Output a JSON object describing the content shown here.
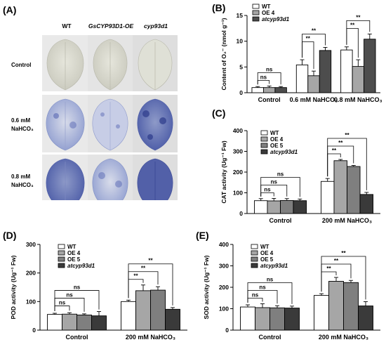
{
  "panelA": {
    "letter": "(A)",
    "columns": [
      "WT",
      "GsCYP93D1-OE",
      "cyp93d1"
    ],
    "rows": [
      {
        "line1": "Control",
        "line2": ""
      },
      {
        "line1": "0.6 mM",
        "line2": "NaHCO₃"
      },
      {
        "line1": "0.8 mM",
        "line2": "NaHCO₃"
      }
    ]
  },
  "chart_data": [
    {
      "id": "B",
      "letter": "(B)",
      "type": "bar",
      "ylabel": "Content of O₂⁻ (nmol g⁻¹)",
      "ylim": [
        0,
        15
      ],
      "yticks": [
        0,
        5,
        10,
        15
      ],
      "categories": [
        "Control",
        "0.6 mM  NaHCO₃",
        "0.8 mM  NaHCO₃"
      ],
      "series": [
        {
          "name": "WT",
          "color": "#ffffff",
          "values": [
            1.0,
            5.4,
            8.3
          ],
          "errors": [
            0.2,
            1.0,
            0.6
          ]
        },
        {
          "name": "OE 4",
          "color": "#a6a6a6",
          "values": [
            1.0,
            3.3,
            5.1
          ],
          "errors": [
            0.3,
            0.9,
            1.3
          ]
        },
        {
          "name": "atcyp93d1",
          "color": "#4d4d4d",
          "values": [
            1.0,
            8.2,
            10.4
          ],
          "errors": [
            0.2,
            0.6,
            1.0
          ]
        }
      ],
      "brackets": [
        {
          "label": "ns",
          "g": 0,
          "from": 0,
          "to": 1,
          "level": 0
        },
        {
          "label": "ns",
          "g": 0,
          "from": 0,
          "to": 2,
          "level": 1
        },
        {
          "label": "**",
          "g": 1,
          "from": 0,
          "to": 1,
          "level": 0
        },
        {
          "label": "**",
          "g": 1,
          "from": 0,
          "to": 2,
          "level": 1
        },
        {
          "label": "**",
          "g": 2,
          "from": 0,
          "to": 1,
          "level": 0
        },
        {
          "label": "**",
          "g": 2,
          "from": 0,
          "to": 2,
          "level": 1
        }
      ]
    },
    {
      "id": "C",
      "letter": "(C)",
      "type": "bar",
      "ylabel": "CAT activity (Ug⁻¹ Fw)",
      "ylim": [
        0,
        400
      ],
      "yticks": [
        0,
        100,
        200,
        300,
        400
      ],
      "categories": [
        "Control",
        "200 mM NaHCO₃"
      ],
      "series": [
        {
          "name": "WT",
          "color": "#ffffff",
          "values": [
            62,
            155
          ],
          "errors": [
            10,
            14
          ]
        },
        {
          "name": "OE 4",
          "color": "#a6a6a6",
          "values": [
            61,
            255
          ],
          "errors": [
            12,
            6
          ]
        },
        {
          "name": "OE 5",
          "color": "#7f7f7f",
          "values": [
            63,
            227
          ],
          "errors": [
            9,
            5
          ]
        },
        {
          "name": "atcyp93d1",
          "color": "#3a3a3a",
          "values": [
            62,
            92
          ],
          "errors": [
            8,
            10
          ]
        }
      ],
      "brackets": [
        {
          "label": "ns",
          "g": 0,
          "from": 0,
          "to": 1,
          "level": 0
        },
        {
          "label": "ns",
          "g": 0,
          "from": 0,
          "to": 2,
          "level": 1
        },
        {
          "label": "ns",
          "g": 0,
          "from": 0,
          "to": 3,
          "level": 2
        },
        {
          "label": "**",
          "g": 1,
          "from": 0,
          "to": 1,
          "level": 0
        },
        {
          "label": "**",
          "g": 1,
          "from": 0,
          "to": 2,
          "level": 1
        },
        {
          "label": "**",
          "g": 1,
          "from": 0,
          "to": 3,
          "level": 2
        }
      ]
    },
    {
      "id": "D",
      "letter": "(D)",
      "type": "bar",
      "ylabel": "POD activity (Ug⁻¹ Fw)",
      "ylim": [
        0,
        300
      ],
      "yticks": [
        0,
        100,
        200,
        300
      ],
      "categories": [
        "Control",
        "200 mM NaHCO₃"
      ],
      "series": [
        {
          "name": "WT",
          "color": "#ffffff",
          "values": [
            55,
            100
          ],
          "errors": [
            4,
            5
          ]
        },
        {
          "name": "OE 4",
          "color": "#a6a6a6",
          "values": [
            56,
            138
          ],
          "errors": [
            5,
            20
          ]
        },
        {
          "name": "OE 5",
          "color": "#7f7f7f",
          "values": [
            53,
            140
          ],
          "errors": [
            4,
            12
          ]
        },
        {
          "name": "atcyp93d1",
          "color": "#3a3a3a",
          "values": [
            50,
            73
          ],
          "errors": [
            15,
            6
          ]
        }
      ],
      "brackets": [
        {
          "label": "ns",
          "g": 0,
          "from": 0,
          "to": 1,
          "level": 0
        },
        {
          "label": "ns",
          "g": 0,
          "from": 0,
          "to": 2,
          "level": 1
        },
        {
          "label": "ns",
          "g": 0,
          "from": 0,
          "to": 3,
          "level": 2
        },
        {
          "label": "**",
          "g": 1,
          "from": 0,
          "to": 1,
          "level": 0
        },
        {
          "label": "**",
          "g": 1,
          "from": 0,
          "to": 2,
          "level": 1
        },
        {
          "label": "**",
          "g": 1,
          "from": 0,
          "to": 3,
          "level": 2
        }
      ]
    },
    {
      "id": "E",
      "letter": "(E)",
      "type": "bar",
      "ylabel": "SOD activity (Ug⁻¹ Fw)",
      "ylim": [
        0,
        400
      ],
      "yticks": [
        0,
        100,
        200,
        300,
        400
      ],
      "categories": [
        "Control",
        "200 mM NaHCO₃"
      ],
      "series": [
        {
          "name": "WT",
          "color": "#ffffff",
          "values": [
            108,
            162
          ],
          "errors": [
            10,
            8
          ]
        },
        {
          "name": "OE 4",
          "color": "#a6a6a6",
          "values": [
            105,
            228
          ],
          "errors": [
            18,
            18
          ]
        },
        {
          "name": "OE 5",
          "color": "#7f7f7f",
          "values": [
            104,
            222
          ],
          "errors": [
            10,
            10
          ]
        },
        {
          "name": "atcyp93d1",
          "color": "#3a3a3a",
          "values": [
            103,
            113
          ],
          "errors": [
            9,
            20
          ]
        }
      ],
      "brackets": [
        {
          "label": "ns",
          "g": 0,
          "from": 0,
          "to": 1,
          "level": 0
        },
        {
          "label": "ns",
          "g": 0,
          "from": 0,
          "to": 2,
          "level": 1
        },
        {
          "label": "ns",
          "g": 0,
          "from": 0,
          "to": 3,
          "level": 2
        },
        {
          "label": "**",
          "g": 1,
          "from": 0,
          "to": 1,
          "level": 0
        },
        {
          "label": "**",
          "g": 1,
          "from": 0,
          "to": 2,
          "level": 1
        },
        {
          "label": "**",
          "g": 1,
          "from": 0,
          "to": 3,
          "level": 2
        }
      ]
    }
  ]
}
